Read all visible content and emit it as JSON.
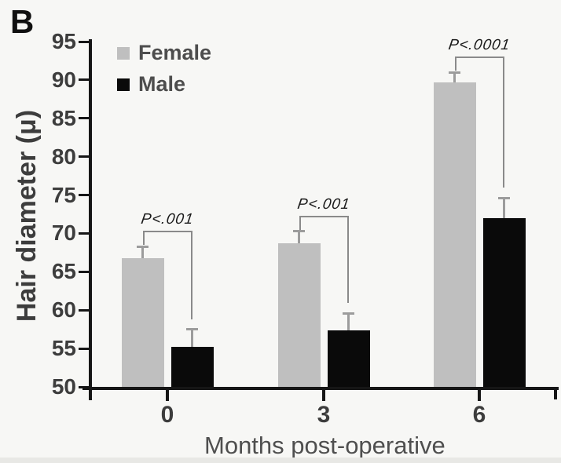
{
  "figure_label": "B",
  "colors": {
    "female": "#bfbfbf",
    "male": "#0a0a0a",
    "error_bar": "#9c9c9c",
    "bracket": "#8a8a8a",
    "axis": "#161616",
    "tick_text": "#3d3d3d",
    "legend_text": "#4d4d4d",
    "background": "#f7f7f5"
  },
  "chart_data": {
    "type": "bar",
    "title": "",
    "xlabel": "Months post-operative",
    "ylabel": "Hair diameter (μ)",
    "categories": [
      "0",
      "3",
      "6"
    ],
    "series": [
      {
        "name": "Female",
        "values": [
          66.8,
          68.7,
          89.7
        ],
        "errors": [
          1.5,
          1.6,
          1.3
        ],
        "color_key": "female"
      },
      {
        "name": "Male",
        "values": [
          55.2,
          57.4,
          72.0
        ],
        "errors": [
          2.3,
          2.2,
          2.6
        ],
        "color_key": "male"
      }
    ],
    "ylim": [
      50,
      95
    ],
    "yticks": [
      50,
      55,
      60,
      65,
      70,
      75,
      80,
      85,
      90,
      95
    ],
    "grid": false,
    "legend_position": "top-left-inside",
    "error_bars": "upper-with-cap",
    "significance": [
      {
        "group": "0",
        "label": "P<.001"
      },
      {
        "group": "3",
        "label": "P<.001"
      },
      {
        "group": "6",
        "label": "P<.0001"
      }
    ]
  }
}
